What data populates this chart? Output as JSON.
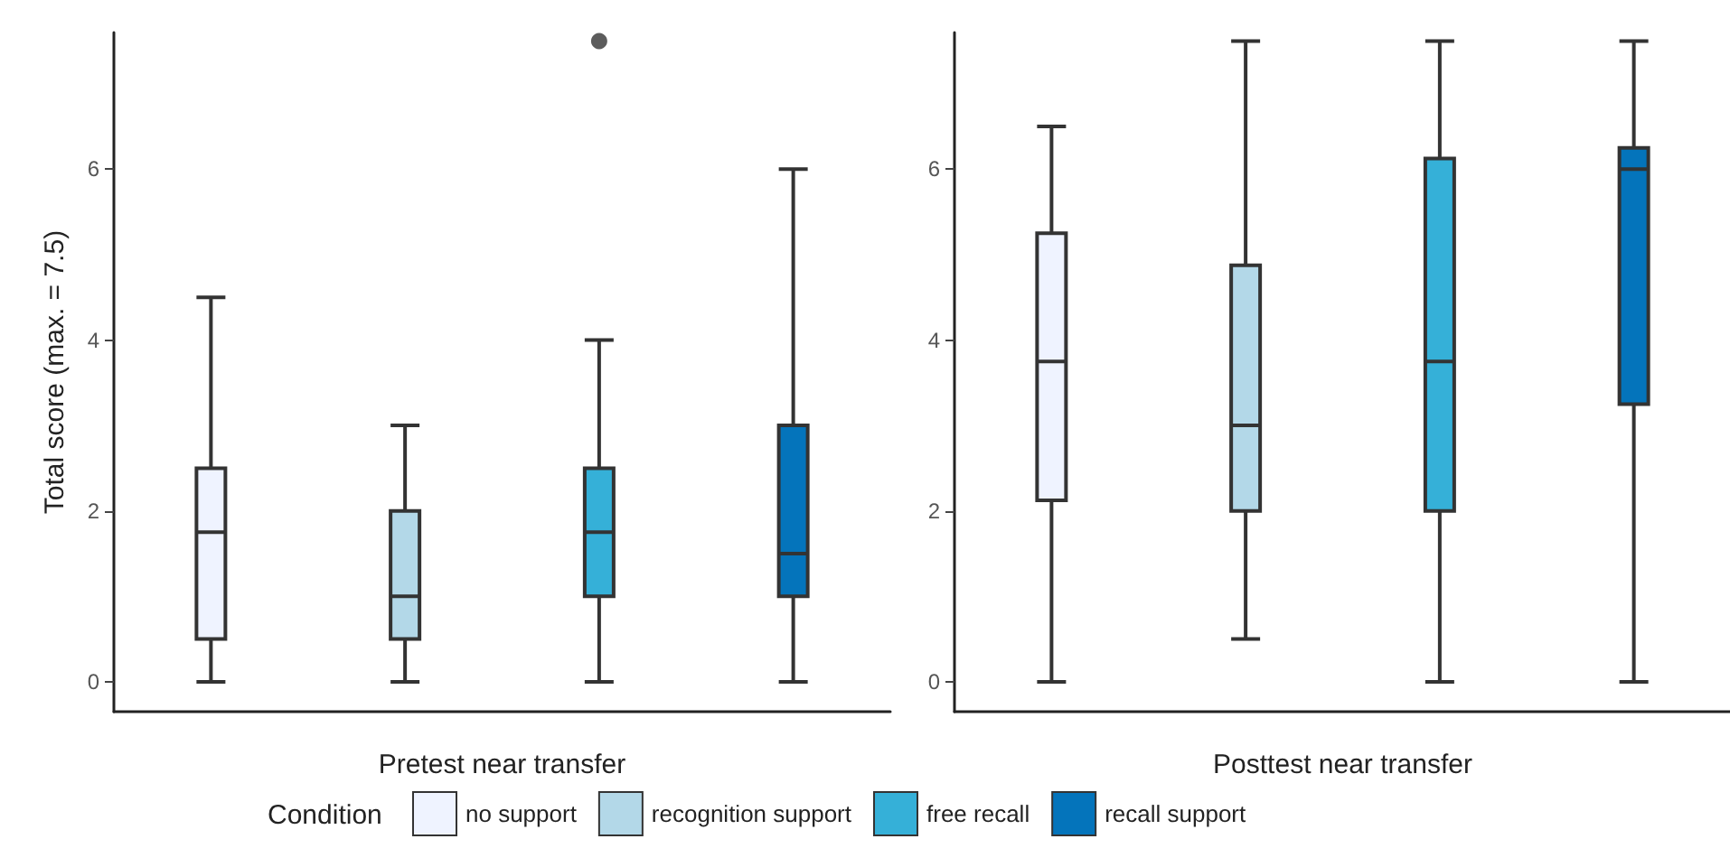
{
  "chart_data": [
    {
      "type": "box",
      "xlabel": "Pretest near transfer",
      "ylabel": "Total score (max. = 7.5)",
      "legend": "bottom",
      "legend_title": "Condition",
      "categories": [
        null,
        null,
        null,
        null
      ],
      "ylim": [
        -0.35,
        7.6
      ],
      "yticks": [
        0,
        2,
        4,
        6
      ],
      "grid": false,
      "series": [
        {
          "name": "no support",
          "color": "#eff3ff",
          "boxes": [
            {
              "low": 0,
              "q1": 0.5,
              "median": 1.75,
              "q3": 2.5,
              "high": 4.5
            },
            null,
            null,
            null
          ]
        },
        {
          "name": "recognition support",
          "color": "#b3d8e8",
          "boxes": [
            null,
            {
              "low": 0,
              "q1": 0.5,
              "median": 1,
              "q3": 2,
              "high": 3
            },
            null,
            null
          ]
        },
        {
          "name": "free recall",
          "color": "#35b0d8",
          "boxes": [
            null,
            null,
            {
              "low": 0,
              "q1": 1,
              "median": 1.75,
              "q3": 2.5,
              "high": 4,
              "outliers": [
                7.5
              ]
            },
            null
          ]
        },
        {
          "name": "recall support",
          "color": "#0474bb",
          "boxes": [
            null,
            null,
            null,
            {
              "low": 0,
              "q1": 1,
              "median": 1.5,
              "q3": 3,
              "high": 6
            }
          ]
        }
      ]
    },
    {
      "type": "box",
      "xlabel": "Posttest near transfer",
      "categories": [
        null,
        null,
        null,
        null
      ],
      "ylim": [
        -0.35,
        7.6
      ],
      "yticks": [
        0,
        2,
        4,
        6
      ],
      "grid": false,
      "series": [
        {
          "color": "#eff3ff",
          "boxes": [
            {
              "low": 0,
              "q1": 2.125,
              "median": 3.75,
              "q3": 5.25,
              "high": 6.5
            },
            null,
            null,
            null
          ]
        },
        {
          "color": "#b3d8e8",
          "boxes": [
            null,
            {
              "low": 0.5,
              "q1": 2,
              "median": 3,
              "q3": 4.875,
              "high": 7.5
            },
            null,
            null
          ]
        },
        {
          "color": "#35b0d8",
          "boxes": [
            null,
            null,
            {
              "low": 0,
              "q1": 2,
              "median": 3.75,
              "q3": 6.125,
              "high": 7.5
            },
            null
          ]
        },
        {
          "color": "#0474bb",
          "boxes": [
            null,
            null,
            null,
            {
              "low": 0,
              "q1": 3.25,
              "median": 6,
              "q3": 6.25,
              "high": 7.5
            }
          ]
        }
      ]
    }
  ]
}
